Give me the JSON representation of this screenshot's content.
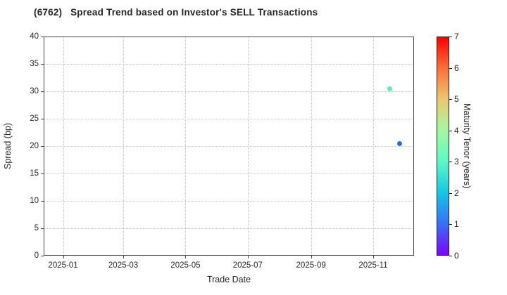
{
  "chart_data": {
    "type": "scatter",
    "title": "(6762)   Spread Trend based on Investor's SELL Transactions",
    "xlabel": "Trade Date",
    "ylabel": "Spread (bp)",
    "xlim": [
      "2024-12-13",
      "2025-12-11"
    ],
    "ylim": [
      0,
      40
    ],
    "x_ticks": [
      "2025-01",
      "2025-03",
      "2025-05",
      "2025-07",
      "2025-09",
      "2025-11"
    ],
    "y_ticks": [
      0,
      5,
      10,
      15,
      20,
      25,
      30,
      35,
      40
    ],
    "grid": {
      "style": "dotted",
      "color": "#c4c4c4"
    },
    "points": [
      {
        "date": "2025-11-17",
        "spread_bp": 30.4,
        "maturity_tenor_years": 3.0,
        "color": "#5aeeb2"
      },
      {
        "date": "2025-11-27",
        "spread_bp": 20.5,
        "maturity_tenor_years": 1.0,
        "color": "#2b68f5"
      }
    ],
    "colorbar": {
      "label": "Maturity Tenor (years)",
      "min": 0,
      "max": 7,
      "ticks": [
        0,
        1,
        2,
        3,
        4,
        5,
        6,
        7
      ],
      "colormap": "rainbow",
      "gradient_bottom_to_top": [
        "#8000ff",
        "#376ff9",
        "#12c7e6",
        "#5bf9c7",
        "#a4f99f",
        "#edc76f",
        "#ff6f39",
        "#ff0000"
      ]
    },
    "colors": {
      "background": "#ffffff",
      "spine": "#444444",
      "text": "#262626"
    }
  }
}
